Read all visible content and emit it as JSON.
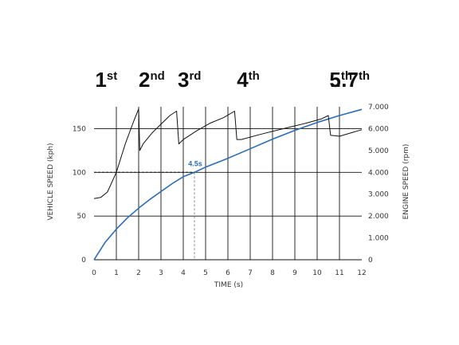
{
  "chart_data": {
    "type": "line",
    "xlabel": "TIME (s)",
    "ylabel_left": "VEHICLE SPEED (kph)",
    "ylabel_right": "ENGINE SPEED (rpm)",
    "xlim": [
      0,
      12
    ],
    "ylim_left": [
      0,
      175
    ],
    "ylim_right": [
      0,
      7000
    ],
    "x_ticks": [
      "0",
      "1",
      "2",
      "3",
      "4",
      "5",
      "6",
      "7",
      "8",
      "9",
      "10",
      "11",
      "12"
    ],
    "y_ticks_left": [
      "0",
      "50",
      "100",
      "150"
    ],
    "y_ticks_right": [
      "0",
      "1.000",
      "2.000",
      "3.000",
      "4.000",
      "5.000",
      "6.000",
      "7.000"
    ],
    "grid": true,
    "gears": [
      {
        "num": "1",
        "sup": "st"
      },
      {
        "num": "2",
        "sup": "nd"
      },
      {
        "num": "3",
        "sup": "rd"
      },
      {
        "num": "4",
        "sup": "th"
      },
      {
        "num": "5",
        "sup": "th"
      },
      {
        "num": "...7",
        "sup": "th"
      }
    ],
    "annotation": {
      "label": "4.5s",
      "x": 4.5,
      "y": 100
    },
    "series": [
      {
        "axis": "left",
        "color": "#2a6cb6",
        "x": [
          0,
          0.5,
          1,
          1.5,
          2,
          2.5,
          3,
          3.5,
          4,
          4.5,
          5,
          6,
          7,
          8,
          9,
          10,
          11,
          12
        ],
        "y": [
          0,
          20,
          35,
          48,
          59,
          69,
          78,
          87,
          95,
          100,
          106,
          116,
          127,
          138,
          148,
          157,
          165,
          172
        ]
      },
      {
        "axis": "right",
        "color": "#111111",
        "x": [
          0,
          0.3,
          0.6,
          1.0,
          1.4,
          1.8,
          2.0,
          2.05,
          2.2,
          2.6,
          3.0,
          3.4,
          3.7,
          3.8,
          4.0,
          4.6,
          5.2,
          5.8,
          6.3,
          6.4,
          6.6,
          7.5,
          8.5,
          9.5,
          10.2,
          10.5,
          10.6,
          11.0,
          11.5,
          12.0
        ],
        "y": [
          2800,
          2850,
          3100,
          4000,
          5300,
          6400,
          6900,
          5000,
          5300,
          5800,
          6200,
          6600,
          6800,
          5300,
          5500,
          5900,
          6250,
          6500,
          6800,
          5500,
          5500,
          5750,
          6000,
          6250,
          6450,
          6600,
          5700,
          5650,
          5800,
          5950
        ]
      }
    ]
  }
}
